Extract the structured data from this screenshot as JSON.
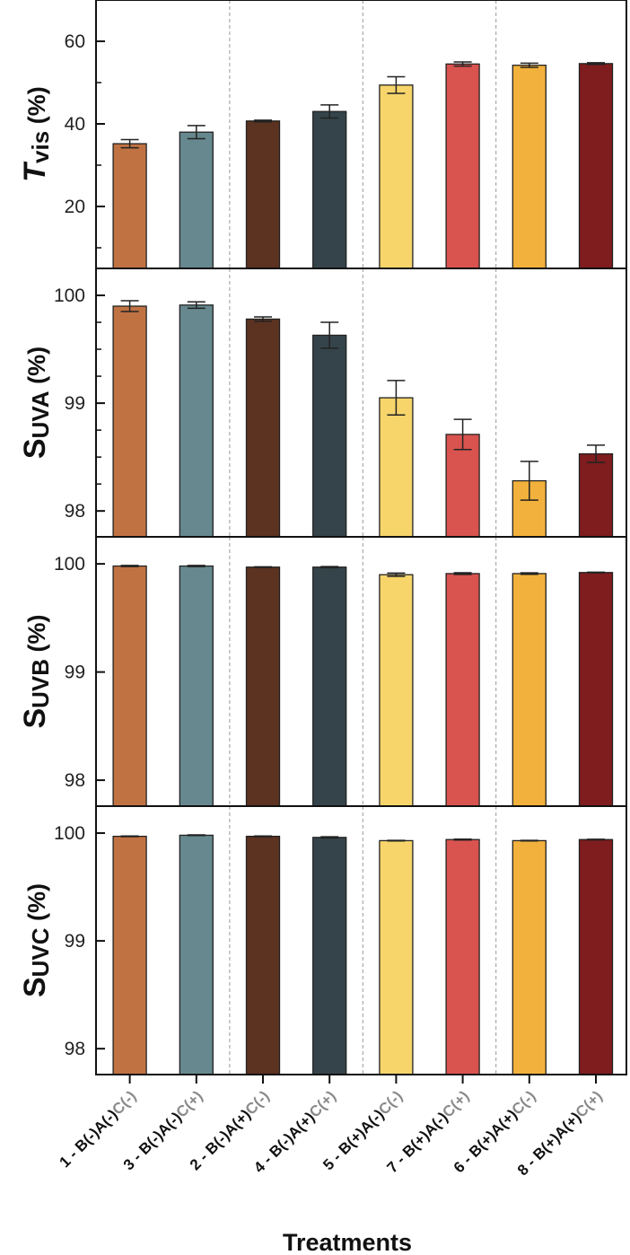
{
  "chart_data": {
    "type": "bar",
    "xlabel": "Treatments",
    "categories": [
      {
        "main": "1 - B(-)A(-)",
        "suffix": "C(-)"
      },
      {
        "main": "3 - B(-)A(-)",
        "suffix": "C(+)"
      },
      {
        "main": "2 - B(-)A(+)",
        "suffix": "C(-)"
      },
      {
        "main": "4 - B(-)A(+)",
        "suffix": "C(+)"
      },
      {
        "main": "5 - B(+)A(-)",
        "suffix": "C(-)"
      },
      {
        "main": "7 - B(+)A(-)",
        "suffix": "C(+)"
      },
      {
        "main": "6 - B(+)A(+)",
        "suffix": "C(-)"
      },
      {
        "main": "8 - B(+)A(+)",
        "suffix": "C(+)"
      }
    ],
    "colors": [
      "#C07243",
      "#66888E",
      "#5C3220",
      "#35444A",
      "#F7D56B",
      "#D9534F",
      "#F2B13C",
      "#7E1C1E"
    ],
    "suffix_color": "#8a8a8a",
    "group_dividers_after": [
      2,
      4,
      6
    ],
    "panels": [
      {
        "ylabel_main": "T",
        "ylabel_sub": "vis",
        "ylabel_unit": " (%)",
        "ylabel_italic": true,
        "ylim": [
          5,
          70
        ],
        "yticks": [
          20,
          40,
          60
        ],
        "yminor": [
          10,
          30,
          50
        ],
        "values": [
          35.2,
          38.0,
          40.7,
          43.0,
          49.4,
          54.5,
          54.2,
          54.6
        ],
        "errors": [
          1.0,
          1.6,
          0.2,
          1.6,
          2.0,
          0.5,
          0.5,
          0.2
        ]
      },
      {
        "ylabel_main": "S",
        "ylabel_sub": "UVA",
        "ylabel_unit": " (%)",
        "ylabel_italic": false,
        "ylim": [
          97.76,
          100.25
        ],
        "yticks": [
          98,
          99,
          100
        ],
        "yminor": [
          97.75,
          98.25,
          98.5,
          98.75,
          99.25,
          99.5,
          99.75
        ],
        "values": [
          99.9,
          99.91,
          99.78,
          99.63,
          99.05,
          98.71,
          98.28,
          98.53
        ],
        "errors": [
          0.05,
          0.03,
          0.02,
          0.12,
          0.16,
          0.14,
          0.18,
          0.08
        ]
      },
      {
        "ylabel_main": "S",
        "ylabel_sub": "UVB",
        "ylabel_unit": " (%)",
        "ylabel_italic": false,
        "ylim": [
          97.76,
          100.25
        ],
        "yticks": [
          98,
          99,
          100
        ],
        "yminor": [],
        "values": [
          99.98,
          99.98,
          99.97,
          99.97,
          99.9,
          99.91,
          99.91,
          99.92
        ],
        "errors": [
          0.005,
          0.005,
          0.003,
          0.005,
          0.015,
          0.008,
          0.007,
          0.003
        ]
      },
      {
        "ylabel_main": "S",
        "ylabel_sub": "UVC",
        "ylabel_unit": " (%)",
        "ylabel_italic": false,
        "ylim": [
          97.76,
          100.25
        ],
        "yticks": [
          98,
          99,
          100
        ],
        "yminor": [],
        "values": [
          99.97,
          99.98,
          99.97,
          99.96,
          99.93,
          99.94,
          99.93,
          99.94
        ],
        "errors": [
          0.003,
          0.003,
          0.003,
          0.006,
          0.003,
          0.004,
          0.003,
          0.003
        ]
      }
    ]
  }
}
